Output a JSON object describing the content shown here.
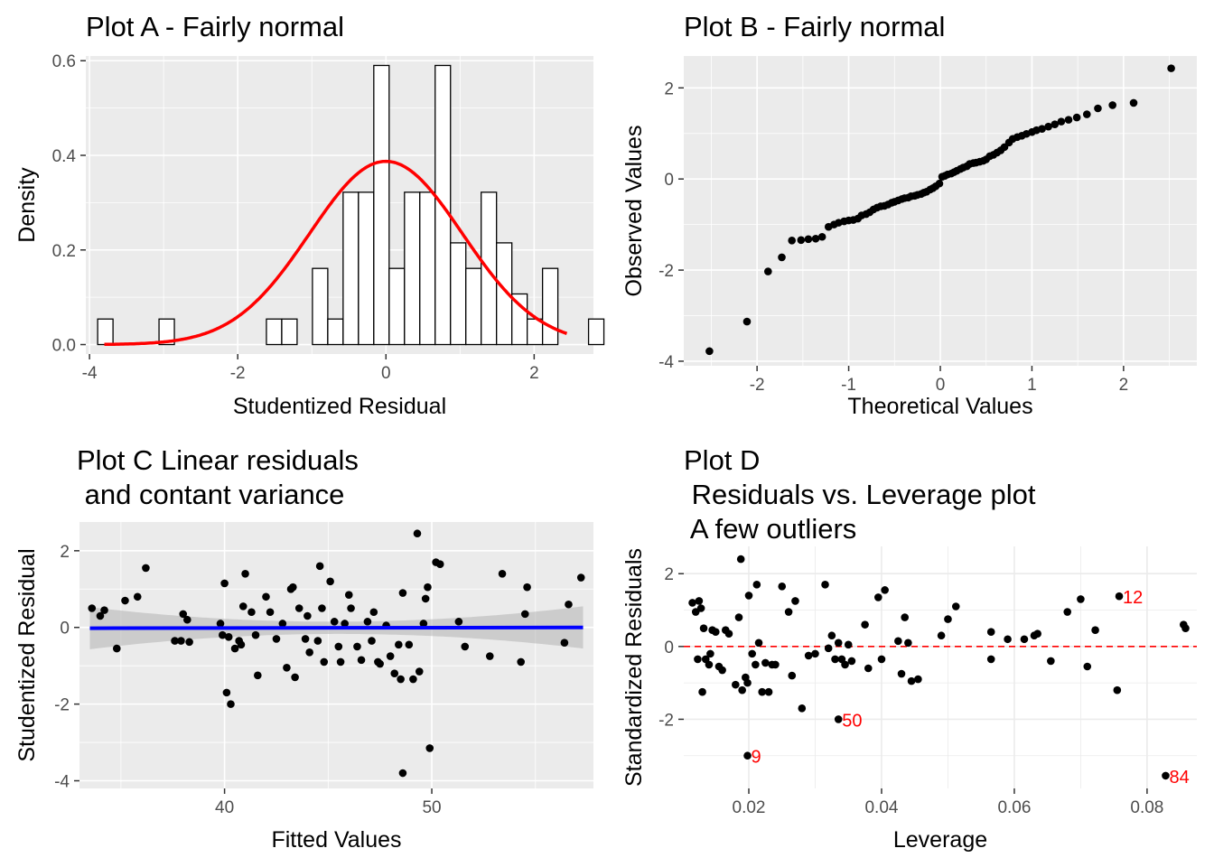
{
  "chart_data": [
    {
      "type": "histogram",
      "title": "Plot A - Fairly normal",
      "xlabel": "Studentized Residual",
      "ylabel": "Density",
      "xlim": [
        -4.05,
        2.8
      ],
      "ylim": [
        -0.02,
        0.61
      ],
      "xticks": [
        -4,
        -2,
        0,
        2
      ],
      "yticks": [
        0.0,
        0.2,
        0.4,
        0.6
      ],
      "xtick_labels": [
        "-4",
        "-2",
        "0",
        "2"
      ],
      "ytick_labels": [
        "0.0",
        "0.2",
        "0.4",
        "0.6"
      ],
      "bin_width": 0.207,
      "bin_start": -3.89,
      "densities": [
        0.054,
        0,
        0,
        0,
        0.054,
        0,
        0,
        0,
        0,
        0,
        0,
        0.054,
        0.054,
        0,
        0.161,
        0.054,
        0.322,
        0.322,
        0.59,
        0.161,
        0.322,
        0.322,
        0.59,
        0.215,
        0.161,
        0.322,
        0.215,
        0.107,
        0.054,
        0.161,
        0,
        0,
        0.054
      ],
      "curve": {
        "name": "normal density",
        "mean": 0,
        "sd": 1.03,
        "color": "#ff0000",
        "x_range": [
          -3.8,
          2.45
        ]
      },
      "bar_fill": "#ffffff",
      "bar_stroke": "#000000",
      "background": "#ebebeb"
    },
    {
      "type": "scatter",
      "title": "Plot B - Fairly normal",
      "xlabel": "Theoretical Values",
      "ylabel": "Observed Values",
      "xlim": [
        -2.8,
        2.8
      ],
      "ylim": [
        -4.1,
        2.7
      ],
      "xticks": [
        -2,
        -1,
        0,
        1,
        2
      ],
      "yticks": [
        -4,
        -2,
        0,
        2
      ],
      "xtick_labels": [
        "-2",
        "-1",
        "0",
        "1",
        "2"
      ],
      "ytick_labels": [
        "-4",
        "-2",
        "0",
        "2"
      ],
      "points": [
        [
          -2.52,
          -3.78
        ],
        [
          -2.11,
          -3.13
        ],
        [
          -1.88,
          -2.03
        ],
        [
          -1.73,
          -1.72
        ],
        [
          -1.62,
          -1.35
        ],
        [
          -1.52,
          -1.34
        ],
        [
          -1.44,
          -1.32
        ],
        [
          -1.36,
          -1.31
        ],
        [
          -1.29,
          -1.27
        ],
        [
          -1.22,
          -1.05
        ],
        [
          -1.16,
          -1.0
        ],
        [
          -1.11,
          -0.96
        ],
        [
          -1.05,
          -0.93
        ],
        [
          -1.0,
          -0.91
        ],
        [
          -0.95,
          -0.9
        ],
        [
          -0.9,
          -0.87
        ],
        [
          -0.86,
          -0.8
        ],
        [
          -0.81,
          -0.77
        ],
        [
          -0.77,
          -0.73
        ],
        [
          -0.73,
          -0.67
        ],
        [
          -0.69,
          -0.63
        ],
        [
          -0.65,
          -0.6
        ],
        [
          -0.61,
          -0.59
        ],
        [
          -0.57,
          -0.56
        ],
        [
          -0.53,
          -0.52
        ],
        [
          -0.5,
          -0.5
        ],
        [
          -0.46,
          -0.47
        ],
        [
          -0.42,
          -0.44
        ],
        [
          -0.39,
          -0.42
        ],
        [
          -0.35,
          -0.41
        ],
        [
          -0.32,
          -0.38
        ],
        [
          -0.28,
          -0.37
        ],
        [
          -0.25,
          -0.35
        ],
        [
          -0.21,
          -0.33
        ],
        [
          -0.18,
          -0.3
        ],
        [
          -0.15,
          -0.28
        ],
        [
          -0.11,
          -0.23
        ],
        [
          -0.08,
          -0.2
        ],
        [
          -0.05,
          -0.16
        ],
        [
          -0.01,
          -0.1
        ],
        [
          0.02,
          0.05
        ],
        [
          0.05,
          0.07
        ],
        [
          0.08,
          0.1
        ],
        [
          0.12,
          0.12
        ],
        [
          0.15,
          0.15
        ],
        [
          0.18,
          0.18
        ],
        [
          0.22,
          0.22
        ],
        [
          0.25,
          0.25
        ],
        [
          0.29,
          0.28
        ],
        [
          0.32,
          0.33
        ],
        [
          0.36,
          0.35
        ],
        [
          0.39,
          0.36
        ],
        [
          0.43,
          0.38
        ],
        [
          0.47,
          0.4
        ],
        [
          0.5,
          0.43
        ],
        [
          0.54,
          0.5
        ],
        [
          0.58,
          0.53
        ],
        [
          0.62,
          0.58
        ],
        [
          0.66,
          0.63
        ],
        [
          0.7,
          0.7
        ],
        [
          0.75,
          0.8
        ],
        [
          0.79,
          0.88
        ],
        [
          0.84,
          0.92
        ],
        [
          0.89,
          0.95
        ],
        [
          0.94,
          0.99
        ],
        [
          1.0,
          1.03
        ],
        [
          1.05,
          1.07
        ],
        [
          1.11,
          1.1
        ],
        [
          1.18,
          1.15
        ],
        [
          1.25,
          1.2
        ],
        [
          1.32,
          1.26
        ],
        [
          1.4,
          1.3
        ],
        [
          1.49,
          1.35
        ],
        [
          1.6,
          1.42
        ],
        [
          1.72,
          1.55
        ],
        [
          1.88,
          1.62
        ],
        [
          2.11,
          1.67
        ],
        [
          2.52,
          2.43
        ]
      ],
      "background": "#ebebeb"
    },
    {
      "type": "scatter",
      "title_lines": [
        "Plot C Linear residuals",
        " and contant variance"
      ],
      "xlabel": "Fitted Values",
      "ylabel": "Studentized Residual",
      "xlim": [
        33.0,
        57.8
      ],
      "ylim": [
        -4.2,
        2.75
      ],
      "xticks": [
        40,
        50
      ],
      "yticks": [
        -4,
        -2,
        0,
        2
      ],
      "xtick_labels": [
        "40",
        "50"
      ],
      "ytick_labels": [
        "-4",
        "-2",
        "0",
        "2"
      ],
      "points": [
        [
          33.6,
          0.5
        ],
        [
          34.0,
          0.3
        ],
        [
          34.2,
          0.45
        ],
        [
          34.8,
          -0.55
        ],
        [
          35.2,
          0.7
        ],
        [
          35.8,
          0.8
        ],
        [
          36.2,
          1.55
        ],
        [
          37.6,
          -0.35
        ],
        [
          37.9,
          -0.35
        ],
        [
          38.0,
          0.35
        ],
        [
          38.2,
          0.2
        ],
        [
          38.3,
          -0.38
        ],
        [
          39.8,
          0.1
        ],
        [
          39.9,
          -0.2
        ],
        [
          40.0,
          1.15
        ],
        [
          40.1,
          -1.7
        ],
        [
          40.2,
          -0.25
        ],
        [
          40.3,
          -2.0
        ],
        [
          40.5,
          -0.55
        ],
        [
          40.7,
          -0.35
        ],
        [
          40.8,
          -0.45
        ],
        [
          40.9,
          0.55
        ],
        [
          41.0,
          1.4
        ],
        [
          41.3,
          0.4
        ],
        [
          41.5,
          -0.2
        ],
        [
          41.6,
          -1.25
        ],
        [
          42.0,
          0.8
        ],
        [
          42.2,
          0.4
        ],
        [
          42.5,
          -0.3
        ],
        [
          42.8,
          0.1
        ],
        [
          43.0,
          -1.05
        ],
        [
          43.2,
          1.0
        ],
        [
          43.3,
          1.05
        ],
        [
          43.4,
          -1.3
        ],
        [
          43.6,
          0.5
        ],
        [
          43.9,
          -0.3
        ],
        [
          44.0,
          0.3
        ],
        [
          44.1,
          -0.65
        ],
        [
          44.5,
          -0.35
        ],
        [
          44.6,
          1.6
        ],
        [
          44.7,
          0.5
        ],
        [
          44.8,
          -0.9
        ],
        [
          45.1,
          1.2
        ],
        [
          45.3,
          0.15
        ],
        [
          45.5,
          -0.5
        ],
        [
          45.6,
          -0.9
        ],
        [
          45.8,
          0.1
        ],
        [
          46.0,
          0.85
        ],
        [
          46.1,
          0.5
        ],
        [
          46.4,
          -0.5
        ],
        [
          46.6,
          -0.85
        ],
        [
          46.9,
          0.15
        ],
        [
          47.1,
          -0.35
        ],
        [
          47.2,
          0.4
        ],
        [
          47.4,
          -0.9
        ],
        [
          47.5,
          -0.95
        ],
        [
          47.8,
          0.05
        ],
        [
          48.0,
          -0.75
        ],
        [
          48.2,
          -1.2
        ],
        [
          48.4,
          -0.45
        ],
        [
          48.5,
          -1.35
        ],
        [
          48.6,
          0.9
        ],
        [
          48.9,
          -0.45
        ],
        [
          49.1,
          -1.35
        ],
        [
          49.3,
          2.45
        ],
        [
          49.4,
          -1.15
        ],
        [
          49.6,
          0.1
        ],
        [
          49.7,
          0.75
        ],
        [
          49.8,
          1.05
        ],
        [
          49.9,
          -3.15
        ],
        [
          50.2,
          1.7
        ],
        [
          50.4,
          1.65
        ],
        [
          51.3,
          0.15
        ],
        [
          51.6,
          -0.5
        ],
        [
          52.8,
          -0.75
        ],
        [
          53.4,
          1.4
        ],
        [
          54.3,
          -0.9
        ],
        [
          54.5,
          0.35
        ],
        [
          54.6,
          1.05
        ],
        [
          56.4,
          -0.4
        ],
        [
          56.6,
          0.6
        ],
        [
          57.2,
          1.3
        ],
        [
          48.6,
          -3.8
        ]
      ],
      "fit_line": {
        "name": "linear fit",
        "from": [
          33.5,
          -0.02
        ],
        "to": [
          57.3,
          0.0
        ],
        "color": "#0000ff"
      },
      "band": {
        "left_halfwidth": 0.55,
        "center_halfwidth": 0.16,
        "right_halfwidth": 0.55,
        "center_x": 45.4,
        "color": "#b3b3b3"
      },
      "background": "#ebebeb"
    },
    {
      "type": "scatter",
      "title_lines": [
        "Plot D",
        " Residuals vs. Leverage plot",
        " A few outliers"
      ],
      "xlabel": "Leverage",
      "ylabel": "Standardized Residuals",
      "xlim": [
        0.0102,
        0.0875
      ],
      "ylim": [
        -3.9,
        2.75
      ],
      "xticks": [
        0.02,
        0.04,
        0.06,
        0.08
      ],
      "yticks": [
        -2,
        0,
        2
      ],
      "xtick_labels": [
        "0.02",
        "0.04",
        "0.06",
        "0.08"
      ],
      "ytick_labels": [
        "-2",
        "0",
        "2"
      ],
      "points": [
        [
          0.0115,
          1.2
        ],
        [
          0.012,
          0.95
        ],
        [
          0.0123,
          -0.35
        ],
        [
          0.0125,
          1.25
        ],
        [
          0.0128,
          1.05
        ],
        [
          0.013,
          -1.25
        ],
        [
          0.0132,
          0.5
        ],
        [
          0.0135,
          -0.35
        ],
        [
          0.014,
          -0.5
        ],
        [
          0.0142,
          -0.2
        ],
        [
          0.0145,
          0.45
        ],
        [
          0.015,
          0.4
        ],
        [
          0.0155,
          -0.55
        ],
        [
          0.016,
          -0.65
        ],
        [
          0.0165,
          0.45
        ],
        [
          0.017,
          0.35
        ],
        [
          0.018,
          -1.05
        ],
        [
          0.0185,
          0.8
        ],
        [
          0.0188,
          2.4
        ],
        [
          0.019,
          -1.2
        ],
        [
          0.0195,
          -0.85
        ],
        [
          0.0198,
          -1.0
        ],
        [
          0.02,
          1.4
        ],
        [
          0.0205,
          -0.2
        ],
        [
          0.021,
          -0.5
        ],
        [
          0.0212,
          1.7
        ],
        [
          0.0215,
          0.1
        ],
        [
          0.022,
          -1.25
        ],
        [
          0.0225,
          -0.45
        ],
        [
          0.023,
          -1.25
        ],
        [
          0.0235,
          -0.5
        ],
        [
          0.024,
          -0.5
        ],
        [
          0.025,
          1.65
        ],
        [
          0.026,
          0.95
        ],
        [
          0.0265,
          -0.8
        ],
        [
          0.027,
          1.25
        ],
        [
          0.028,
          -1.7
        ],
        [
          0.029,
          -0.25
        ],
        [
          0.03,
          -0.2
        ],
        [
          0.0315,
          1.7
        ],
        [
          0.032,
          -0.05
        ],
        [
          0.0325,
          0.3
        ],
        [
          0.033,
          -0.35
        ],
        [
          0.0335,
          0.1
        ],
        [
          0.034,
          -0.35
        ],
        [
          0.0345,
          -0.5
        ],
        [
          0.035,
          0.05
        ],
        [
          0.0355,
          -0.4
        ],
        [
          0.0375,
          0.6
        ],
        [
          0.038,
          -0.6
        ],
        [
          0.0395,
          1.35
        ],
        [
          0.04,
          -0.35
        ],
        [
          0.0405,
          1.55
        ],
        [
          0.0425,
          0.15
        ],
        [
          0.043,
          -0.75
        ],
        [
          0.0435,
          0.8
        ],
        [
          0.044,
          0.1
        ],
        [
          0.0445,
          -0.95
        ],
        [
          0.0455,
          -0.9
        ],
        [
          0.049,
          0.3
        ],
        [
          0.05,
          0.75
        ],
        [
          0.0512,
          1.1
        ],
        [
          0.0565,
          0.4
        ],
        [
          0.0565,
          -0.35
        ],
        [
          0.059,
          0.2
        ],
        [
          0.0615,
          0.2
        ],
        [
          0.063,
          0.3
        ],
        [
          0.0635,
          0.35
        ],
        [
          0.0655,
          -0.4
        ],
        [
          0.068,
          0.95
        ],
        [
          0.07,
          1.3
        ],
        [
          0.071,
          -0.55
        ],
        [
          0.0722,
          0.45
        ],
        [
          0.0755,
          -1.2
        ],
        [
          0.0855,
          0.6
        ],
        [
          0.0858,
          0.5
        ]
      ],
      "labeled_points": [
        {
          "x": 0.0198,
          "y": -3.0,
          "label": "9"
        },
        {
          "x": 0.0335,
          "y": -2.0,
          "label": "50"
        },
        {
          "x": 0.0758,
          "y": 1.38,
          "label": "12"
        },
        {
          "x": 0.0828,
          "y": -3.55,
          "label": "84"
        }
      ],
      "reference_line": {
        "y": 0,
        "color": "#ff0000",
        "style": "dashed"
      },
      "background": "#ffffff"
    }
  ]
}
